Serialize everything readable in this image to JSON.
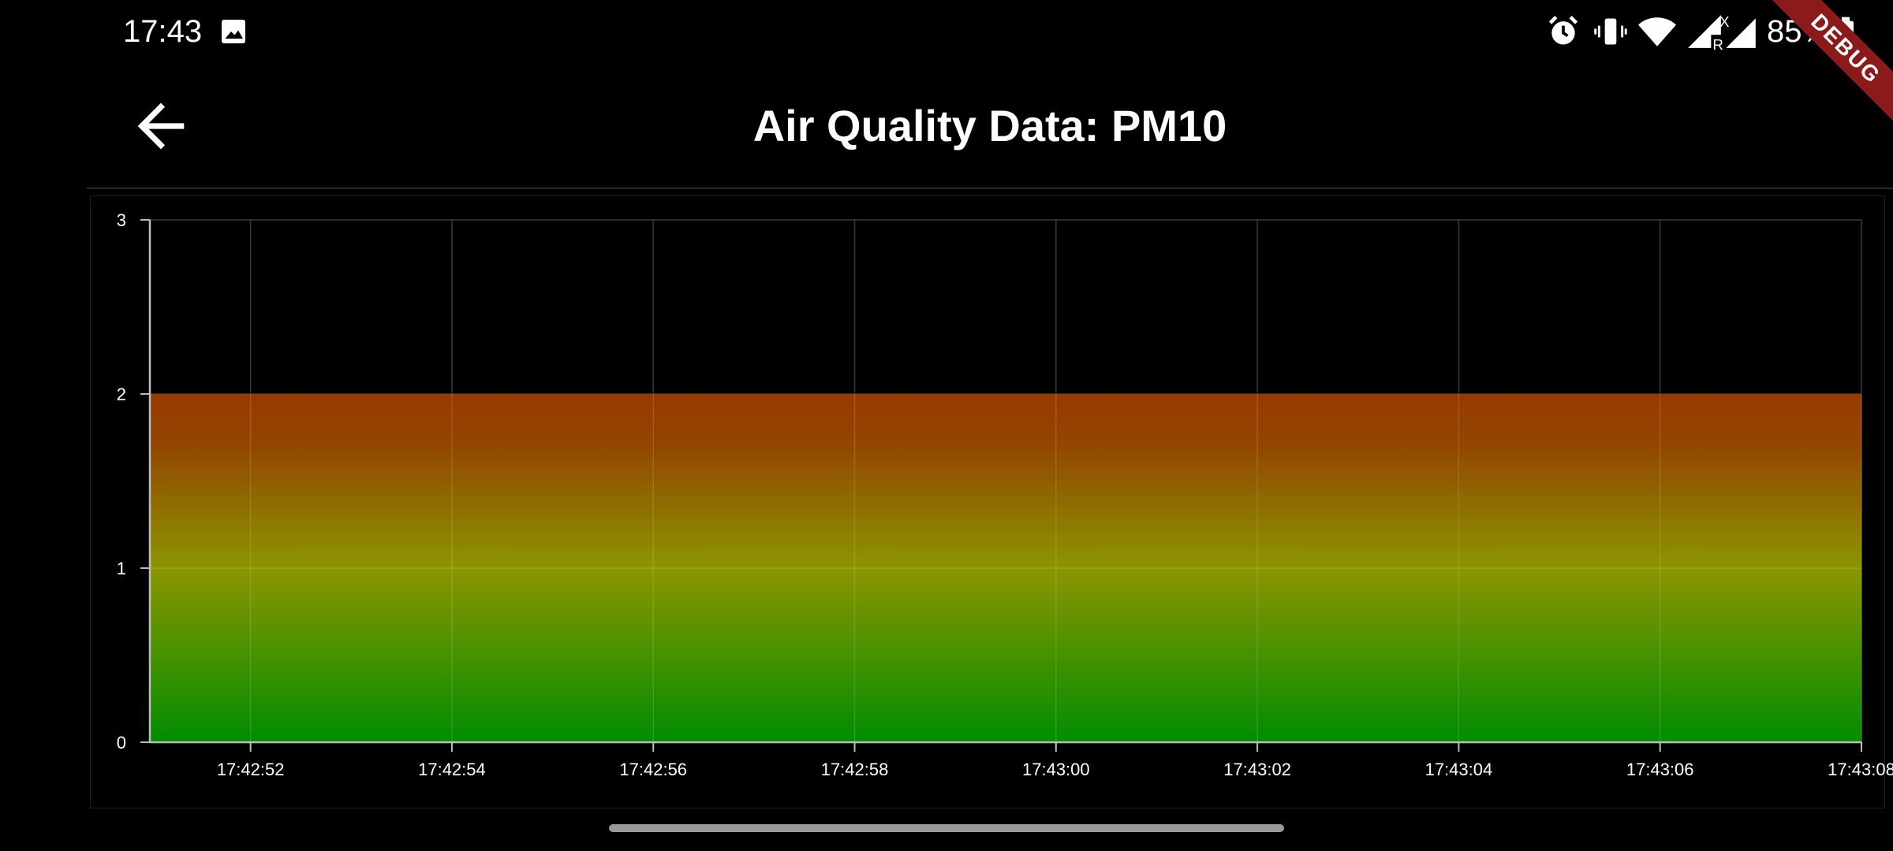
{
  "status_bar": {
    "time": "17:43",
    "battery_text": "85%",
    "icons": [
      "gallery-icon",
      "alarm-icon",
      "vibrate-icon",
      "wifi-icon",
      "signal-r-icon",
      "signal-x-icon",
      "signal-icon",
      "battery-icon"
    ]
  },
  "debug_banner": {
    "label": "DEBUG",
    "color": "#8b1a1a"
  },
  "app_bar": {
    "title": "Air Quality Data: PM10",
    "back_icon": "arrow-back-icon"
  },
  "chart_data": {
    "type": "area",
    "title": "",
    "xlabel": "",
    "ylabel": "",
    "ylim": [
      0,
      3
    ],
    "y_ticks": [
      "0",
      "1",
      "2",
      "3"
    ],
    "x_ticks": [
      "17:42:52",
      "17:42:54",
      "17:42:56",
      "17:42:58",
      "17:43:00",
      "17:43:02",
      "17:43:04",
      "17:43:06",
      "17:43:08"
    ],
    "xlim": [
      "17:42:51",
      "17:43:08"
    ],
    "series": [
      {
        "x": [
          "17:42:51",
          "17:43:08"
        ],
        "values": [
          2,
          2
        ]
      }
    ],
    "grid": true,
    "gradient_colors": {
      "top": "#9a3b00",
      "middle": "#8f9800",
      "bottom": "#009000"
    }
  }
}
